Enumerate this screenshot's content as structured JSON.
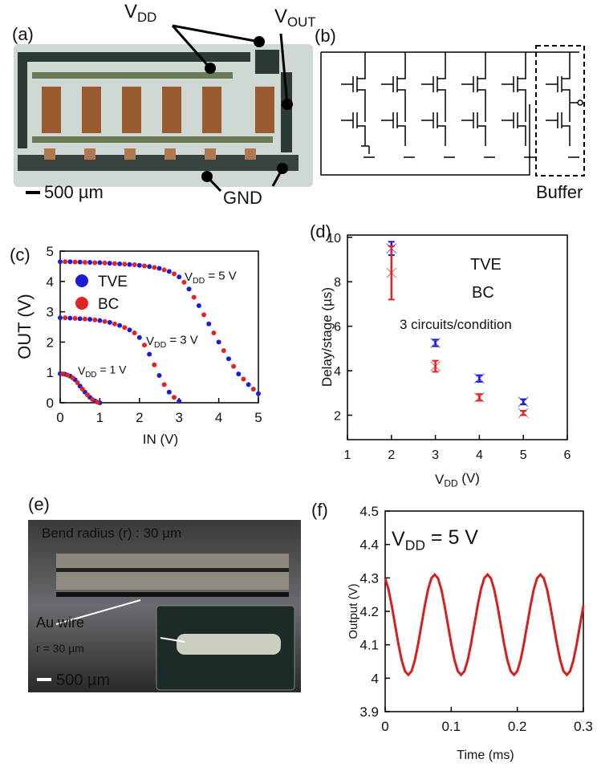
{
  "panels": {
    "a": {
      "label": "(a)",
      "vdd": [
        "V",
        "DD"
      ],
      "vout": [
        "V",
        "OUT"
      ],
      "gnd": "GND",
      "scale": "500 µm"
    },
    "b": {
      "label": "(b)",
      "buffer": "Buffer"
    },
    "e": {
      "label": "(e)",
      "bend": "Bend radius (r) : 30 µm",
      "wire": "Au wire",
      "radius": "r = 30 µm",
      "scale": "500 µm"
    }
  },
  "chart_data": [
    {
      "type": "scatter",
      "panel_label": "(c)",
      "x_label": "IN (V)",
      "y_label": "OUT (V)",
      "xlim": [
        0,
        5
      ],
      "xticks": [
        0,
        1,
        2,
        3,
        4,
        5
      ],
      "ylim": [
        0,
        5
      ],
      "yticks": [
        0,
        1,
        2,
        3,
        4,
        5
      ],
      "annotations": [
        [
          "V",
          "DD",
          " = 5 V"
        ],
        [
          "V",
          "DD",
          " = 3 V"
        ],
        [
          "V",
          "DD",
          " = 1 V"
        ]
      ],
      "series": [
        {
          "name": "TVE",
          "color": "#1c1cd6",
          "curves": [
            {
              "x": [
                0,
                0.25,
                0.5,
                0.75,
                1,
                1.25,
                1.5,
                1.75,
                2,
                2.25,
                2.5,
                2.75,
                3,
                3.25,
                3.5,
                3.75,
                4,
                4.25,
                4.5,
                4.75,
                5
              ],
              "values": [
                4.65,
                4.65,
                4.64,
                4.63,
                4.62,
                4.6,
                4.58,
                4.56,
                4.53,
                4.49,
                4.43,
                4.33,
                4.15,
                3.75,
                3.2,
                2.6,
                2.0,
                1.45,
                0.95,
                0.6,
                0.3
              ]
            },
            {
              "x": [
                0,
                0.25,
                0.5,
                0.75,
                1,
                1.25,
                1.5,
                1.75,
                2,
                2.25,
                2.5,
                2.75,
                3
              ],
              "values": [
                2.8,
                2.79,
                2.77,
                2.75,
                2.71,
                2.65,
                2.55,
                2.4,
                2.15,
                1.6,
                0.9,
                0.35,
                0.05
              ]
            },
            {
              "x": [
                0,
                0.125,
                0.25,
                0.375,
                0.5,
                0.625,
                0.75,
                0.875,
                1
              ],
              "values": [
                0.96,
                0.94,
                0.88,
                0.76,
                0.55,
                0.35,
                0.18,
                0.06,
                0
              ]
            }
          ]
        },
        {
          "name": "BC",
          "color": "#e02424",
          "curves": [
            {
              "x": [
                0.125,
                0.375,
                0.625,
                0.875,
                1.125,
                1.375,
                1.625,
                1.875,
                2.125,
                2.375,
                2.625,
                2.875,
                3.125,
                3.375,
                3.625,
                3.875,
                4.125,
                4.375,
                4.625,
                4.875
              ],
              "values": [
                4.65,
                4.64,
                4.63,
                4.62,
                4.61,
                4.59,
                4.57,
                4.55,
                4.51,
                4.46,
                4.38,
                4.25,
                3.97,
                3.48,
                2.9,
                2.3,
                1.72,
                1.2,
                0.78,
                0.45
              ]
            },
            {
              "x": [
                0.125,
                0.375,
                0.625,
                0.875,
                1.125,
                1.375,
                1.625,
                1.875,
                2.125,
                2.375,
                2.625,
                2.875
              ],
              "values": [
                2.8,
                2.78,
                2.76,
                2.73,
                2.68,
                2.6,
                2.48,
                2.3,
                1.9,
                1.25,
                0.6,
                0.18
              ]
            },
            {
              "x": [
                0.0625,
                0.1875,
                0.3125,
                0.4375,
                0.5625,
                0.6875,
                0.8125,
                0.9375
              ],
              "values": [
                0.95,
                0.91,
                0.82,
                0.66,
                0.45,
                0.26,
                0.11,
                0.02
              ]
            }
          ]
        }
      ]
    },
    {
      "type": "scatter",
      "panel_label": "(d)",
      "x_label": [
        "V",
        "DD",
        " (V)"
      ],
      "y_label": "Delay/stage (µs)",
      "xlim": [
        1,
        6
      ],
      "xticks": [
        1,
        2,
        3,
        4,
        5,
        6
      ],
      "ylim": [
        0.9,
        10.1
      ],
      "yticks": [
        2,
        4,
        6,
        8,
        10
      ],
      "annotations": [
        "3 circuits/condition"
      ],
      "series": [
        {
          "name": "TVE",
          "color": "#1c1cd6",
          "x": [
            2,
            3,
            4,
            5
          ],
          "values": [
            9.5,
            5.25,
            3.65,
            2.6
          ],
          "errors": [
            0.3,
            0.15,
            0.15,
            0.12
          ]
        },
        {
          "name": "BC",
          "color": "#e02424",
          "x": [
            2,
            3,
            4,
            5
          ],
          "values": [
            8.4,
            4.2,
            2.8,
            2.1
          ],
          "errors": [
            1.2,
            0.25,
            0.15,
            0.1
          ]
        }
      ]
    },
    {
      "type": "line",
      "panel_label": "(f)",
      "x_label": "Time (ms)",
      "y_label": "Output (V)",
      "xlim": [
        0,
        0.3
      ],
      "xticks": [
        0,
        0.1,
        0.2,
        0.3
      ],
      "ylim": [
        3.9,
        4.5
      ],
      "yticks": [
        3.9,
        4,
        4.1,
        4.2,
        4.3,
        4.4,
        4.5
      ],
      "annotations": [
        [
          "V",
          "DD",
          " = 5 V"
        ]
      ],
      "series": [
        {
          "color": "#d42020",
          "x": [
            0,
            0.005,
            0.01,
            0.015,
            0.02,
            0.025,
            0.03,
            0.035,
            0.04,
            0.045,
            0.05,
            0.055,
            0.06,
            0.065,
            0.07,
            0.075,
            0.08,
            0.085,
            0.09,
            0.095,
            0.1,
            0.105,
            0.11,
            0.115,
            0.12,
            0.125,
            0.13,
            0.135,
            0.14,
            0.145,
            0.15,
            0.155,
            0.16,
            0.165,
            0.17,
            0.175,
            0.18,
            0.185,
            0.19,
            0.195,
            0.2,
            0.205,
            0.21,
            0.215,
            0.22,
            0.225,
            0.23,
            0.235,
            0.24,
            0.245,
            0.25,
            0.255,
            0.26,
            0.265,
            0.27,
            0.275,
            0.28,
            0.285,
            0.29,
            0.295,
            0.3
          ],
          "values": [
            4.299,
            4.266,
            4.217,
            4.16,
            4.103,
            4.054,
            4.021,
            4.01,
            4.021,
            4.054,
            4.103,
            4.16,
            4.217,
            4.266,
            4.299,
            4.31,
            4.299,
            4.266,
            4.217,
            4.16,
            4.103,
            4.054,
            4.021,
            4.01,
            4.021,
            4.054,
            4.103,
            4.16,
            4.217,
            4.266,
            4.299,
            4.31,
            4.299,
            4.266,
            4.217,
            4.16,
            4.103,
            4.054,
            4.021,
            4.01,
            4.021,
            4.054,
            4.103,
            4.16,
            4.217,
            4.266,
            4.299,
            4.31,
            4.299,
            4.266,
            4.217,
            4.16,
            4.103,
            4.054,
            4.021,
            4.01,
            4.021,
            4.054,
            4.103,
            4.16,
            4.217
          ]
        }
      ]
    }
  ]
}
